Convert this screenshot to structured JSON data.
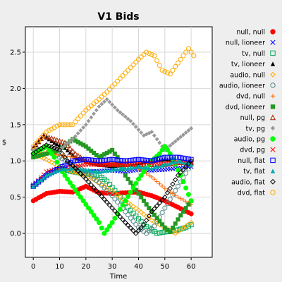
{
  "chart_data": {
    "type": "line",
    "title": "V1 Bids",
    "xlabel": "Time",
    "ylabel": "$",
    "xlim": [
      -3,
      68
    ],
    "ylim": [
      -0.33,
      2.85
    ],
    "xticks": [
      "0",
      "10",
      "20",
      "30",
      "40",
      "50",
      "60"
    ],
    "yticks": [
      "0.0",
      "0.5",
      "1.0",
      "1.5",
      "2.0",
      "2.5"
    ],
    "grid": true,
    "legend_position": "right",
    "series": [
      {
        "name": "null, null",
        "color": "#ff0000",
        "marker": "circle-filled",
        "points": [
          [
            0,
            0.45
          ],
          [
            5,
            0.55
          ],
          [
            10,
            0.58
          ],
          [
            15,
            0.57
          ],
          [
            20,
            0.65
          ],
          [
            25,
            0.56
          ],
          [
            30,
            0.55
          ],
          [
            35,
            0.56
          ],
          [
            40,
            0.57
          ],
          [
            45,
            0.52
          ],
          [
            50,
            0.45
          ],
          [
            55,
            0.36
          ],
          [
            60,
            0.27
          ]
        ]
      },
      {
        "name": "null, lioneer",
        "color": "#0000ff",
        "marker": "x",
        "points": [
          [
            0,
            0.67
          ],
          [
            5,
            0.8
          ],
          [
            10,
            0.88
          ],
          [
            15,
            0.85
          ],
          [
            20,
            0.85
          ],
          [
            25,
            0.86
          ],
          [
            30,
            0.87
          ],
          [
            35,
            0.85
          ],
          [
            40,
            0.88
          ],
          [
            45,
            0.87
          ],
          [
            50,
            0.88
          ],
          [
            55,
            0.9
          ],
          [
            60,
            0.92
          ]
        ]
      },
      {
        "name": "tv, null",
        "color": "#00aa55",
        "marker": "square-open",
        "points": [
          [
            0,
            0.65
          ],
          [
            5,
            0.8
          ],
          [
            10,
            0.9
          ],
          [
            15,
            0.85
          ],
          [
            20,
            0.82
          ],
          [
            25,
            0.8
          ],
          [
            28,
            0.72
          ],
          [
            32,
            0.55
          ],
          [
            37,
            0.32
          ],
          [
            42,
            0.12
          ],
          [
            47,
            0.0
          ],
          [
            50,
            0.02
          ],
          [
            55,
            0.05
          ],
          [
            58,
            0.08
          ],
          [
            60,
            0.12
          ]
        ]
      },
      {
        "name": "tv, lioneer",
        "color": "#000000",
        "marker": "triangle-filled",
        "points": [
          [
            0,
            1.18
          ],
          [
            4,
            1.35
          ],
          [
            8,
            1.25
          ],
          [
            12,
            1.18
          ],
          [
            16,
            1.05
          ],
          [
            20,
            1.0
          ],
          [
            25,
            0.95
          ],
          [
            30,
            0.93
          ],
          [
            35,
            0.95
          ],
          [
            40,
            0.97
          ],
          [
            45,
            1.0
          ],
          [
            50,
            1.02
          ],
          [
            55,
            1.0
          ],
          [
            60,
            0.98
          ]
        ]
      },
      {
        "name": "audio, null",
        "color": "#ffaa00",
        "marker": "diamond-open",
        "points": [
          [
            0,
            1.1
          ],
          [
            5,
            1.02
          ],
          [
            10,
            0.92
          ],
          [
            15,
            0.85
          ],
          [
            20,
            0.8
          ],
          [
            25,
            0.7
          ],
          [
            30,
            0.58
          ],
          [
            35,
            0.45
          ],
          [
            40,
            0.32
          ],
          [
            45,
            0.18
          ],
          [
            50,
            0.08
          ],
          [
            54,
            0.0
          ],
          [
            58,
            0.1
          ],
          [
            60,
            0.15
          ]
        ]
      },
      {
        "name": "audio, lioneer",
        "color": "#558888",
        "marker": "circle-open",
        "points": [
          [
            0,
            1.1
          ],
          [
            5,
            1.2
          ],
          [
            10,
            1.05
          ],
          [
            15,
            0.95
          ],
          [
            20,
            0.85
          ],
          [
            25,
            0.7
          ],
          [
            30,
            0.52
          ],
          [
            35,
            0.3
          ],
          [
            40,
            0.08
          ],
          [
            43,
            0.0
          ],
          [
            46,
            0.1
          ],
          [
            50,
            0.35
          ],
          [
            55,
            0.65
          ],
          [
            60,
            0.95
          ]
        ]
      },
      {
        "name": "dvd, null",
        "color": "#ff6600",
        "marker": "plus",
        "points": [
          [
            0,
            1.1
          ],
          [
            5,
            1.12
          ],
          [
            10,
            1.08
          ],
          [
            15,
            1.05
          ],
          [
            20,
            1.0
          ],
          [
            25,
            0.98
          ],
          [
            30,
            0.96
          ],
          [
            35,
            0.95
          ],
          [
            40,
            0.9
          ],
          [
            45,
            0.78
          ],
          [
            50,
            0.62
          ],
          [
            55,
            0.5
          ],
          [
            60,
            0.4
          ]
        ]
      },
      {
        "name": "dvd, lioneer",
        "color": "#229922",
        "marker": "square-filled",
        "points": [
          [
            0,
            1.05
          ],
          [
            5,
            1.1
          ],
          [
            10,
            1.15
          ],
          [
            15,
            1.3
          ],
          [
            20,
            1.2
          ],
          [
            25,
            1.05
          ],
          [
            30,
            1.15
          ],
          [
            32,
            1.05
          ],
          [
            35,
            0.8
          ],
          [
            40,
            0.55
          ],
          [
            45,
            0.3
          ],
          [
            50,
            0.08
          ],
          [
            52,
            0.02
          ],
          [
            56,
            0.25
          ],
          [
            60,
            0.45
          ]
        ]
      },
      {
        "name": "null, pg",
        "color": "#aa2200",
        "marker": "triangle-open",
        "points": [
          [
            0,
            1.18
          ],
          [
            4,
            1.35
          ],
          [
            8,
            1.3
          ],
          [
            12,
            1.25
          ],
          [
            16,
            1.1
          ],
          [
            20,
            1.0
          ],
          [
            25,
            0.95
          ],
          [
            30,
            0.95
          ],
          [
            35,
            0.95
          ],
          [
            40,
            0.95
          ],
          [
            45,
            0.95
          ],
          [
            50,
            0.95
          ],
          [
            55,
            0.98
          ],
          [
            60,
            0.98
          ]
        ]
      },
      {
        "name": "tv, pg",
        "color": "#999999",
        "marker": "diamond-filled",
        "points": [
          [
            0,
            1.15
          ],
          [
            5,
            1.2
          ],
          [
            10,
            1.15
          ],
          [
            15,
            1.3
          ],
          [
            20,
            1.5
          ],
          [
            25,
            1.75
          ],
          [
            28,
            1.85
          ],
          [
            32,
            1.7
          ],
          [
            37,
            1.55
          ],
          [
            42,
            1.35
          ],
          [
            45,
            1.4
          ],
          [
            50,
            1.15
          ],
          [
            55,
            1.3
          ],
          [
            60,
            1.45
          ]
        ]
      },
      {
        "name": "audio, pg",
        "color": "#00ff00",
        "marker": "circle-filled",
        "points": [
          [
            0,
            1.1
          ],
          [
            5,
            1.2
          ],
          [
            8,
            1.05
          ],
          [
            11,
            0.85
          ],
          [
            15,
            0.65
          ],
          [
            20,
            0.4
          ],
          [
            25,
            0.15
          ],
          [
            27,
            0.0
          ],
          [
            30,
            0.15
          ],
          [
            35,
            0.45
          ],
          [
            40,
            0.75
          ],
          [
            45,
            1.0
          ],
          [
            48,
            1.1
          ],
          [
            50,
            1.2
          ],
          [
            52,
            1.1
          ],
          [
            56,
            0.8
          ],
          [
            60,
            0.45
          ]
        ]
      },
      {
        "name": "dvd, pg",
        "color": "#ff0000",
        "marker": "x",
        "points": [
          [
            0,
            0.65
          ],
          [
            5,
            0.85
          ],
          [
            10,
            0.9
          ],
          [
            15,
            0.92
          ],
          [
            20,
            0.95
          ],
          [
            25,
            0.95
          ],
          [
            30,
            0.95
          ],
          [
            35,
            0.96
          ],
          [
            40,
            0.97
          ],
          [
            45,
            0.97
          ],
          [
            50,
            0.97
          ],
          [
            55,
            0.98
          ],
          [
            60,
            0.95
          ]
        ]
      },
      {
        "name": "null, flat",
        "color": "#0000ff",
        "marker": "square-open",
        "points": [
          [
            0,
            0.65
          ],
          [
            5,
            0.8
          ],
          [
            10,
            0.9
          ],
          [
            15,
            1.0
          ],
          [
            20,
            1.02
          ],
          [
            25,
            1.0
          ],
          [
            30,
            1.02
          ],
          [
            35,
            1.0
          ],
          [
            40,
            1.02
          ],
          [
            45,
            1.0
          ],
          [
            50,
            1.05
          ],
          [
            55,
            1.05
          ],
          [
            60,
            1.02
          ]
        ]
      },
      {
        "name": "tv, flat",
        "color": "#00aaaa",
        "marker": "triangle-filled",
        "points": [
          [
            0,
            0.65
          ],
          [
            5,
            0.8
          ],
          [
            10,
            0.88
          ],
          [
            15,
            0.9
          ],
          [
            20,
            0.88
          ],
          [
            25,
            0.85
          ],
          [
            30,
            0.88
          ],
          [
            35,
            0.9
          ],
          [
            40,
            0.92
          ],
          [
            45,
            0.9
          ],
          [
            50,
            0.95
          ],
          [
            55,
            1.0
          ],
          [
            60,
            0.95
          ]
        ]
      },
      {
        "name": "audio, flat",
        "color": "#000000",
        "marker": "diamond-open",
        "points": [
          [
            0,
            1.1
          ],
          [
            5,
            1.22
          ],
          [
            10,
            1.15
          ],
          [
            13,
            1.0
          ],
          [
            16,
            0.9
          ],
          [
            20,
            0.75
          ],
          [
            25,
            0.55
          ],
          [
            30,
            0.35
          ],
          [
            35,
            0.15
          ],
          [
            39,
            0.0
          ],
          [
            42,
            0.12
          ],
          [
            45,
            0.3
          ],
          [
            50,
            0.5
          ],
          [
            55,
            0.8
          ],
          [
            60,
            1.0
          ]
        ]
      },
      {
        "name": "dvd, flat",
        "color": "#ffaa00",
        "marker": "circle-open",
        "points": [
          [
            0,
            1.2
          ],
          [
            5,
            1.4
          ],
          [
            10,
            1.5
          ],
          [
            15,
            1.5
          ],
          [
            20,
            1.7
          ],
          [
            25,
            1.85
          ],
          [
            28,
            1.95
          ],
          [
            32,
            2.1
          ],
          [
            36,
            2.25
          ],
          [
            40,
            2.4
          ],
          [
            43,
            2.5
          ],
          [
            46,
            2.45
          ],
          [
            49,
            2.25
          ],
          [
            52,
            2.2
          ],
          [
            56,
            2.4
          ],
          [
            59,
            2.55
          ],
          [
            61,
            2.45
          ]
        ]
      }
    ]
  }
}
